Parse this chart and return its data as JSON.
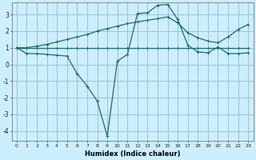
{
  "xlabel": "Humidex (Indice chaleur)",
  "background_color": "#cceeff",
  "grid_color": "#99bbcc",
  "line_color": "#1a6b6b",
  "xlim": [
    -0.5,
    23.5
  ],
  "ylim": [
    -4.6,
    3.7
  ],
  "xticks": [
    0,
    1,
    2,
    3,
    4,
    5,
    6,
    7,
    8,
    9,
    10,
    11,
    12,
    13,
    14,
    15,
    16,
    17,
    18,
    19,
    20,
    21,
    22,
    23
  ],
  "yticks": [
    -4,
    -3,
    -2,
    -1,
    0,
    1,
    2,
    3
  ],
  "line1_x": [
    0,
    1,
    2,
    3,
    4,
    5,
    6,
    7,
    8,
    9,
    10,
    11,
    12,
    13,
    14,
    15,
    16,
    17,
    18,
    19,
    20,
    21,
    22,
    23
  ],
  "line1_y": [
    1.0,
    1.0,
    1.1,
    1.2,
    1.35,
    1.5,
    1.65,
    1.8,
    2.0,
    2.15,
    2.3,
    2.45,
    2.55,
    2.65,
    2.75,
    2.85,
    2.5,
    1.9,
    1.6,
    1.4,
    1.3,
    1.65,
    2.1,
    2.4
  ],
  "line2_x": [
    0,
    1,
    2,
    3,
    4,
    5,
    6,
    7,
    8,
    9,
    10,
    11,
    12,
    13,
    14,
    15,
    16,
    17,
    18,
    19,
    20,
    21,
    22,
    23
  ],
  "line2_y": [
    1.0,
    1.0,
    1.0,
    1.0,
    1.0,
    1.0,
    1.0,
    1.0,
    1.0,
    1.0,
    1.0,
    1.0,
    1.0,
    1.0,
    1.0,
    1.0,
    1.0,
    1.0,
    1.0,
    1.0,
    1.0,
    1.0,
    1.0,
    1.0
  ],
  "line3_x": [
    0,
    1,
    2,
    3,
    4,
    5,
    6,
    7,
    8,
    9,
    10,
    11,
    12,
    13,
    14,
    15,
    16,
    17,
    18,
    19,
    20,
    21,
    22,
    23
  ],
  "line3_y": [
    1.0,
    0.65,
    0.65,
    0.6,
    0.55,
    0.5,
    -0.55,
    -1.3,
    -2.2,
    -4.3,
    0.2,
    0.6,
    3.05,
    3.1,
    3.55,
    3.6,
    2.7,
    1.15,
    0.75,
    0.7,
    1.05,
    0.65,
    0.65,
    0.7
  ]
}
